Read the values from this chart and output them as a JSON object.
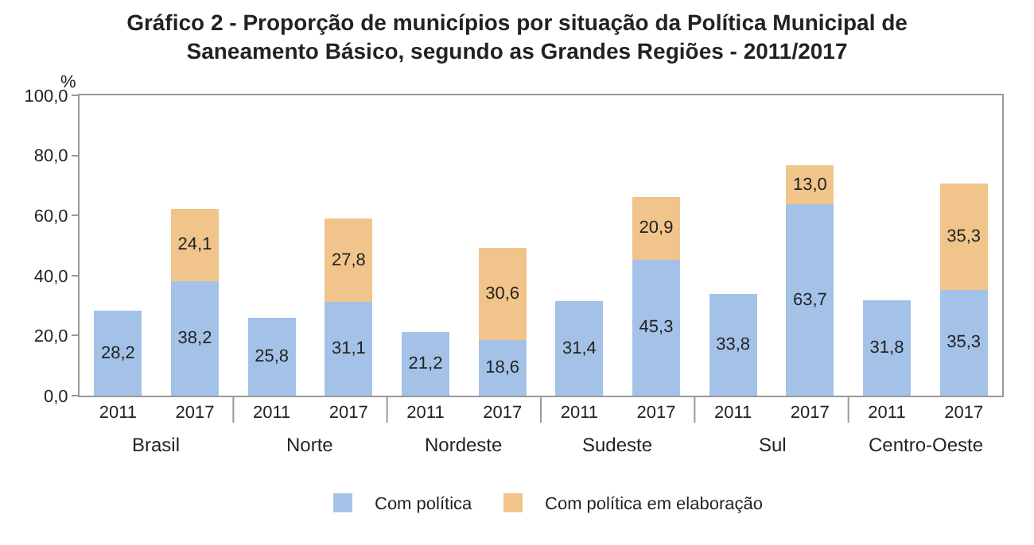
{
  "chart_data": {
    "type": "bar",
    "title": "Gráfico 2 - Proporção de municípios por situação da Política Municipal de\nSaneamento Básico, segundo as Grandes Regiões - 2011/2017",
    "ylabel": "%",
    "categories": [
      "2011",
      "2017",
      "2011",
      "2017",
      "2011",
      "2017",
      "2011",
      "2017",
      "2011",
      "2017",
      "2011",
      "2017"
    ],
    "annotations": [
      "Brasil",
      "Norte",
      "Nordeste",
      "Sudeste",
      "Sul",
      "Centro-Oeste"
    ],
    "stacked": true,
    "ylim": [
      0,
      100
    ],
    "yticks": [
      {
        "value": 0,
        "label": "0,0"
      },
      {
        "value": 20,
        "label": "20,0"
      },
      {
        "value": 40,
        "label": "40,0"
      },
      {
        "value": 60,
        "label": "60,0"
      },
      {
        "value": 80,
        "label": "80,0"
      },
      {
        "value": 100,
        "label": "100,0"
      }
    ],
    "legend": "bottom",
    "series": [
      {
        "name": "Com política",
        "color": "#a4c2e8",
        "values": [
          28.2,
          38.2,
          25.8,
          31.1,
          21.2,
          18.6,
          31.4,
          45.3,
          33.8,
          63.7,
          31.8,
          35.3
        ],
        "value_labels": [
          "28,2",
          "38,2",
          "25,8",
          "31,1",
          "21,2",
          "18,6",
          "31,4",
          "45,3",
          "33,8",
          "63,7",
          "31,8",
          "35,3"
        ]
      },
      {
        "name": "Com política em elaboração",
        "color": "#f0c48a",
        "values": [
          null,
          24.1,
          null,
          27.8,
          null,
          30.6,
          null,
          20.9,
          null,
          13.0,
          null,
          35.3
        ],
        "value_labels": [
          null,
          "24,1",
          null,
          "27,8",
          null,
          "30,6",
          null,
          "20,9",
          null,
          "13,0",
          null,
          "35,3"
        ]
      }
    ]
  }
}
